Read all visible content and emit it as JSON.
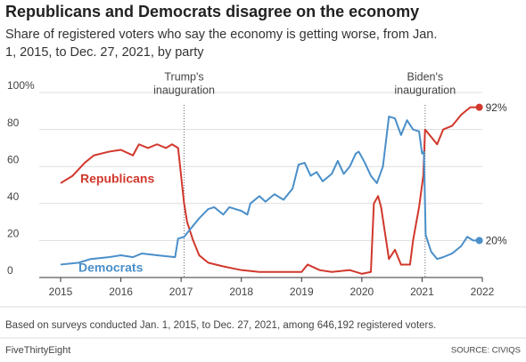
{
  "chart_data": {
    "type": "line",
    "title": "Republicans and Democrats disagree on the economy",
    "subtitle": [
      "Share of registered voters who say the economy is getting worse, from Jan.",
      "1, 2015, to Dec. 27, 2021, by party"
    ],
    "xlim": [
      2015,
      2022
    ],
    "xticks": [
      2015,
      2016,
      2017,
      2018,
      2019,
      2020,
      2021,
      2022
    ],
    "ylim": [
      0,
      100
    ],
    "yticks": [
      0,
      20,
      40,
      60,
      80,
      {
        "value": 100,
        "label": "100%"
      }
    ],
    "grid": true,
    "series": [
      {
        "name": "Republicans",
        "color": "#d1382c",
        "x": [
          2015.0,
          2015.2,
          2015.4,
          2015.55,
          2015.8,
          2016.0,
          2016.2,
          2016.3,
          2016.45,
          2016.6,
          2016.75,
          2016.85,
          2016.95,
          2017.05,
          2017.1,
          2017.2,
          2017.3,
          2017.45,
          2017.7,
          2018.0,
          2018.3,
          2018.6,
          2019.0,
          2019.1,
          2019.3,
          2019.5,
          2019.8,
          2020.0,
          2020.15,
          2020.2,
          2020.27,
          2020.32,
          2020.45,
          2020.55,
          2020.65,
          2020.8,
          2020.85,
          2020.95,
          2021.02,
          2021.05,
          2021.15,
          2021.25,
          2021.35,
          2021.5,
          2021.65,
          2021.8,
          2021.95
        ],
        "values": [
          51,
          55,
          62,
          66,
          68,
          69,
          66,
          72,
          70,
          72,
          70,
          72,
          70,
          40,
          30,
          20,
          12,
          8,
          6,
          4,
          3,
          3,
          3,
          7,
          4,
          3,
          4,
          2,
          3,
          40,
          44,
          38,
          10,
          15,
          7,
          7,
          20,
          38,
          55,
          80,
          76,
          72,
          80,
          82,
          88,
          92,
          92
        ],
        "value_labels": [
          null,
          null,
          null,
          null,
          null,
          null,
          null,
          null,
          null,
          null,
          null,
          null,
          null,
          null,
          null,
          null,
          null,
          null,
          null,
          null,
          null,
          null,
          null,
          null,
          null,
          null,
          null,
          null,
          null,
          null,
          null,
          null,
          null,
          null,
          null,
          null,
          null,
          null,
          null,
          null,
          null,
          null,
          null,
          null,
          null,
          null,
          "92%"
        ]
      },
      {
        "name": "Democrats",
        "color": "#4a8fc9",
        "x": [
          2015.0,
          2015.3,
          2015.5,
          2015.8,
          2016.0,
          2016.2,
          2016.35,
          2016.6,
          2016.9,
          2016.95,
          2017.05,
          2017.15,
          2017.3,
          2017.45,
          2017.55,
          2017.7,
          2017.8,
          2018.0,
          2018.1,
          2018.15,
          2018.3,
          2018.4,
          2018.55,
          2018.7,
          2018.85,
          2018.95,
          2019.05,
          2019.15,
          2019.25,
          2019.35,
          2019.5,
          2019.6,
          2019.7,
          2019.8,
          2019.9,
          2019.95,
          2020.05,
          2020.15,
          2020.25,
          2020.35,
          2020.45,
          2020.55,
          2020.65,
          2020.75,
          2020.85,
          2020.95,
          2021.0,
          2021.03,
          2021.06,
          2021.15,
          2021.25,
          2021.35,
          2021.5,
          2021.65,
          2021.75,
          2021.85,
          2021.95
        ],
        "values": [
          7,
          8,
          10,
          11,
          12,
          11,
          13,
          12,
          11,
          21,
          22,
          26,
          32,
          37,
          38,
          34,
          38,
          36,
          34,
          40,
          44,
          41,
          45,
          42,
          48,
          61,
          62,
          55,
          57,
          52,
          56,
          63,
          56,
          60,
          67,
          68,
          62,
          55,
          51,
          60,
          87,
          86,
          77,
          85,
          80,
          79,
          67,
          68,
          23,
          14,
          10,
          11,
          13,
          17,
          22,
          20,
          20
        ],
        "value_labels": [
          null,
          null,
          null,
          null,
          null,
          null,
          null,
          null,
          null,
          null,
          null,
          null,
          null,
          null,
          null,
          null,
          null,
          null,
          null,
          null,
          null,
          null,
          null,
          null,
          null,
          null,
          null,
          null,
          null,
          null,
          null,
          null,
          null,
          null,
          null,
          null,
          null,
          null,
          null,
          null,
          null,
          null,
          null,
          null,
          null,
          null,
          null,
          null,
          null,
          null,
          null,
          null,
          null,
          null,
          null,
          null,
          "20%"
        ]
      }
    ],
    "annotations": [
      {
        "text": [
          "Trump's",
          "inauguration"
        ],
        "x": 2017.05
      },
      {
        "text": [
          "Biden's",
          "inauguration"
        ],
        "x": 2021.05
      }
    ],
    "footnote": "Based on surveys conducted Jan. 1, 2015, to Dec. 27, 2021, among 646,192 registered voters.",
    "brand": "FiveThirtyEight",
    "source": "SOURCE: CIVIQS"
  }
}
